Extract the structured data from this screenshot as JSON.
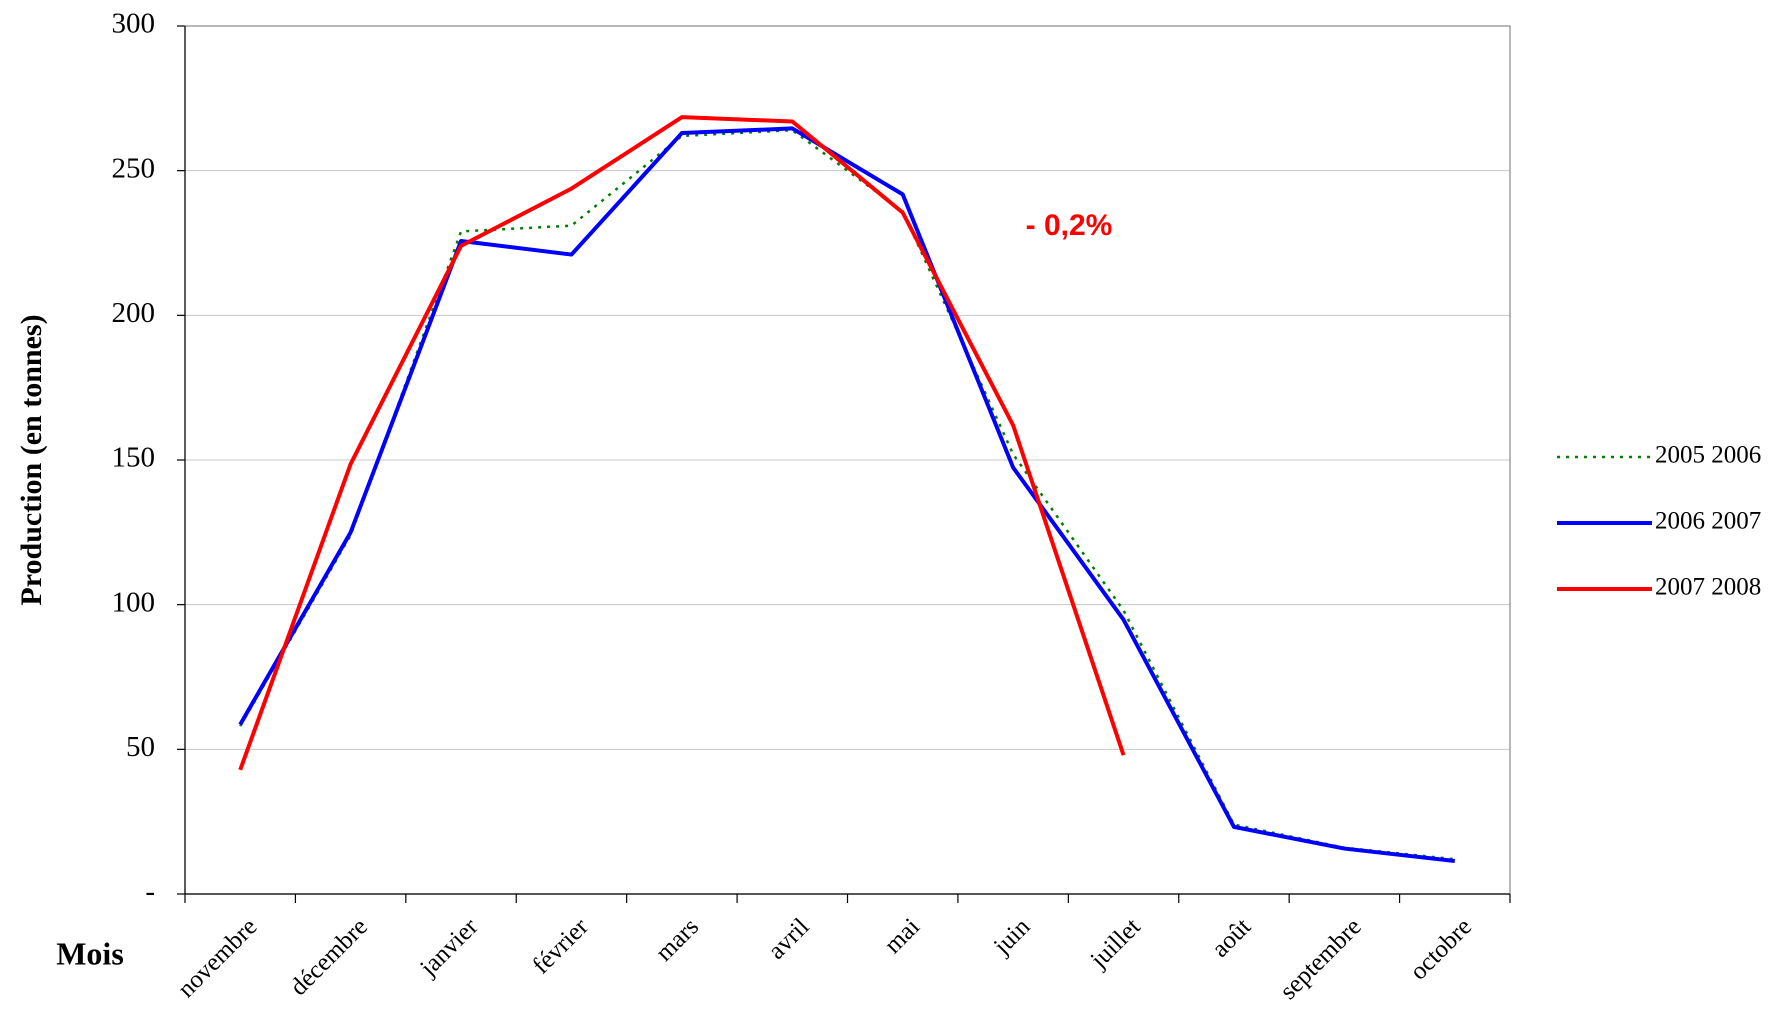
{
  "chart_data": {
    "type": "line",
    "x_label": "Mois",
    "y_label": "Production (en tonnes)",
    "annotation": "- 0,2%",
    "categories": [
      "novembre",
      "décembre",
      "janvier",
      "février",
      "mars",
      "avril",
      "mai",
      "juin",
      "juillet",
      "août",
      "septembre",
      "octobre"
    ],
    "series": [
      {
        "name": "2005 2006",
        "color": "#008000",
        "dashed": true,
        "values": [
          58,
          124,
          229,
          231,
          262,
          264,
          236,
          152,
          98,
          24,
          16,
          12
        ]
      },
      {
        "name": "2006 2007",
        "color": "#0000ff",
        "dashed": false,
        "values": [
          58.6,
          125,
          225.7,
          221,
          263,
          264.6,
          241.8,
          147.4,
          94.8,
          23.2,
          15.7,
          11.4
        ]
      },
      {
        "name": "2007 2008",
        "color": "#ff0000",
        "dashed": false,
        "values": [
          42.9,
          148.6,
          224,
          243.8,
          268.5,
          267,
          235.5,
          162,
          48,
          null,
          null,
          null
        ]
      }
    ],
    "ylim": [
      0,
      300
    ],
    "yticks": [
      {
        "value": 0,
        "label": "-"
      },
      50,
      100,
      150,
      200,
      250,
      300
    ],
    "grid": true,
    "legend": "right"
  }
}
